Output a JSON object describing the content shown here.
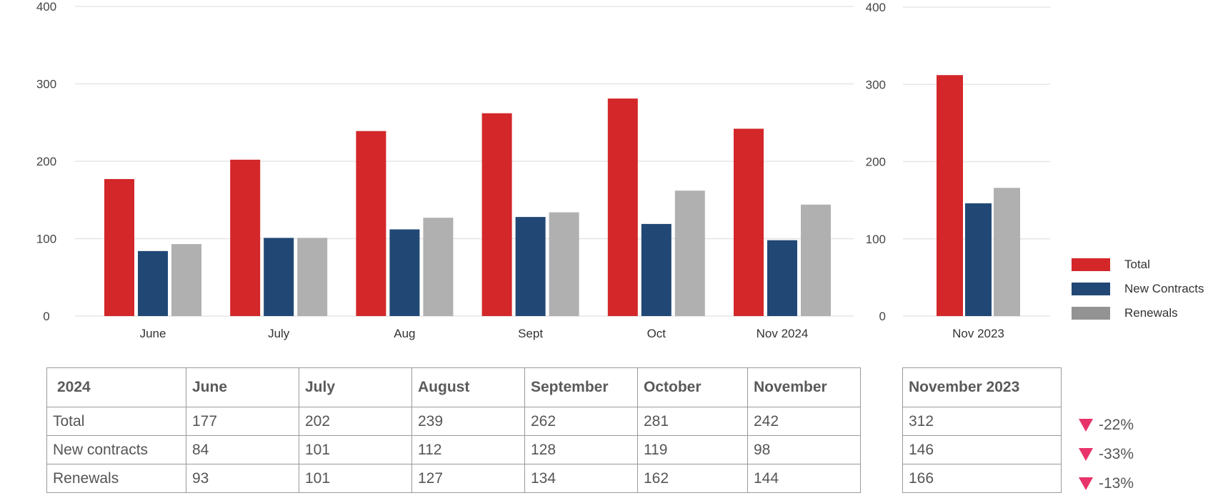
{
  "colors": {
    "total": "#d32729",
    "new_contracts": "#214875",
    "renewals": "#b0b0b0",
    "renewals_legend": "#939393",
    "down_arrow": "#e8336a"
  },
  "chart_data": [
    {
      "type": "bar",
      "categories": [
        "June",
        "July",
        "Aug",
        "Sept",
        "Oct",
        "Nov 2024"
      ],
      "series": [
        {
          "name": "Total",
          "values": [
            177,
            202,
            239,
            262,
            281,
            242
          ]
        },
        {
          "name": "New Contracts",
          "values": [
            84,
            101,
            112,
            128,
            119,
            98
          ]
        },
        {
          "name": "Renewals",
          "values": [
            93,
            101,
            127,
            134,
            162,
            144
          ]
        }
      ],
      "ylim": [
        0,
        400
      ],
      "yticks": [
        "0",
        "100",
        "200",
        "300",
        "400"
      ],
      "grid": true
    },
    {
      "type": "bar",
      "categories": [
        "Nov 2023"
      ],
      "series": [
        {
          "name": "Total",
          "values": [
            312
          ]
        },
        {
          "name": "New Contracts",
          "values": [
            146
          ]
        },
        {
          "name": "Renewals",
          "values": [
            166
          ]
        }
      ],
      "ylim": [
        0,
        400
      ],
      "yticks": [
        "0",
        "100",
        "200",
        "300",
        "400"
      ],
      "grid": true,
      "legend": "right"
    }
  ],
  "legend": [
    {
      "label": "Total"
    },
    {
      "label": "New Contracts"
    },
    {
      "label": "Renewals"
    }
  ],
  "main_table": {
    "headers": [
      "2024",
      "June",
      "July",
      "August",
      "September",
      "October",
      "November"
    ],
    "rows": [
      [
        "Total",
        "177",
        "202",
        "239",
        "262",
        "281",
        "242"
      ],
      [
        "New contracts",
        "84",
        "101",
        "112",
        "128",
        "119",
        "98"
      ],
      [
        "Renewals",
        "93",
        "101",
        "127",
        "134",
        "162",
        "144"
      ]
    ]
  },
  "compare_table": {
    "header": "November 2023",
    "rows": [
      "312",
      "146",
      "166"
    ]
  },
  "changes": [
    "-22%",
    "-33%",
    "-13%"
  ]
}
